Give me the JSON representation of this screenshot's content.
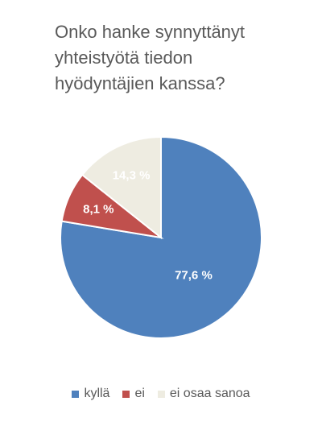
{
  "chart_data": {
    "type": "pie",
    "title": "Onko hanke synnyttänyt yhteistyötä tiedon hyödyntäjien kanssa?",
    "categories": [
      "kyllä",
      "ei",
      "ei osaa sanoa"
    ],
    "values": [
      77.6,
      8.1,
      14.3
    ],
    "value_labels": [
      "77,6 %",
      "8,1 %",
      "14,3 %"
    ],
    "colors": [
      "#4f81bd",
      "#c0504d",
      "#eeece1"
    ]
  }
}
